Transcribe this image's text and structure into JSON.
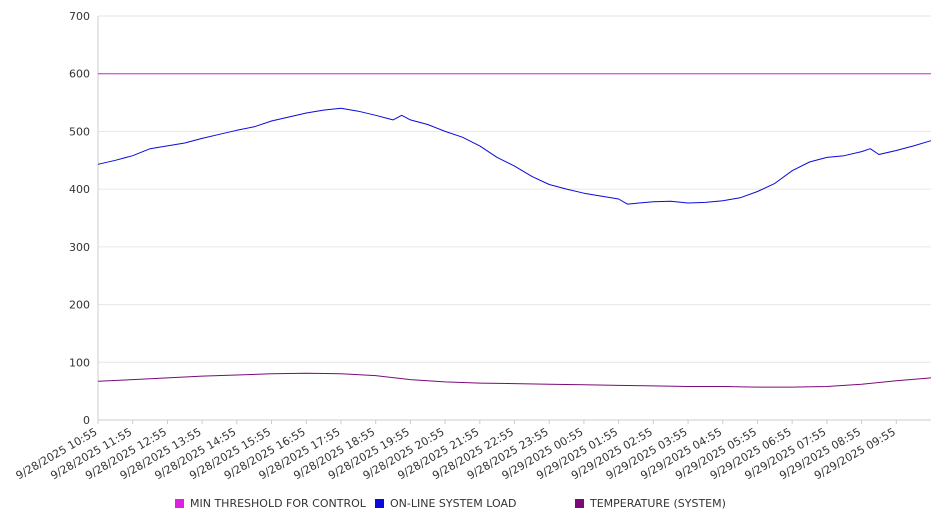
{
  "chart_data": {
    "type": "line",
    "title": "",
    "xlabel": "",
    "ylabel": "",
    "ylim": [
      0,
      700
    ],
    "y_ticks": [
      0,
      100,
      200,
      300,
      400,
      500,
      600,
      700
    ],
    "grid": "horizontal",
    "legend_position": "bottom",
    "x_start": "9/28/2025 10:55",
    "x_end": "9/29/2025 10:55",
    "x_tick_labels": [
      "9/28/2025 10:55",
      "9/28/2025 11:55",
      "9/28/2025 12:55",
      "9/28/2025 13:55",
      "9/28/2025 14:55",
      "9/28/2025 15:55",
      "9/28/2025 16:55",
      "9/28/2025 17:55",
      "9/28/2025 18:55",
      "9/28/2025 19:55",
      "9/28/2025 20:55",
      "9/28/2025 21:55",
      "9/28/2025 22:55",
      "9/28/2025 23:55",
      "9/29/2025 00:55",
      "9/29/2025 01:55",
      "9/29/2025 02:55",
      "9/29/2025 03:55",
      "9/29/2025 04:55",
      "9/29/2025 05:55",
      "9/29/2025 06:55",
      "9/29/2025 07:55",
      "9/29/2025 08:55",
      "9/29/2025 09:55"
    ],
    "series": [
      {
        "name": "MIN THRESHOLD FOR CONTROL",
        "color": "#e020e0",
        "points": [
          [
            "9/28/2025 10:55",
            600
          ],
          [
            "9/29/2025 10:55",
            600
          ]
        ]
      },
      {
        "name": "ON-LINE SYSTEM LOAD",
        "color": "#0a0adc",
        "points": [
          [
            "9/28/2025 10:55",
            443
          ],
          [
            "9/28/2025 11:25",
            450
          ],
          [
            "9/28/2025 11:55",
            458
          ],
          [
            "9/28/2025 12:25",
            470
          ],
          [
            "9/28/2025 12:55",
            475
          ],
          [
            "9/28/2025 13:25",
            480
          ],
          [
            "9/28/2025 13:55",
            488
          ],
          [
            "9/28/2025 14:25",
            495
          ],
          [
            "9/28/2025 14:55",
            502
          ],
          [
            "9/28/2025 15:25",
            508
          ],
          [
            "9/28/2025 15:55",
            518
          ],
          [
            "9/28/2025 16:25",
            525
          ],
          [
            "9/28/2025 16:55",
            532
          ],
          [
            "9/28/2025 17:25",
            537
          ],
          [
            "9/28/2025 17:55",
            540
          ],
          [
            "9/28/2025 18:25",
            535
          ],
          [
            "9/28/2025 18:55",
            528
          ],
          [
            "9/28/2025 19:25",
            520
          ],
          [
            "9/28/2025 19:40",
            528
          ],
          [
            "9/28/2025 19:55",
            520
          ],
          [
            "9/28/2025 20:25",
            512
          ],
          [
            "9/28/2025 20:55",
            500
          ],
          [
            "9/28/2025 21:25",
            490
          ],
          [
            "9/28/2025 21:55",
            475
          ],
          [
            "9/28/2025 22:25",
            455
          ],
          [
            "9/28/2025 22:55",
            440
          ],
          [
            "9/28/2025 23:25",
            422
          ],
          [
            "9/28/2025 23:55",
            408
          ],
          [
            "9/29/2025 00:25",
            400
          ],
          [
            "9/29/2025 00:55",
            393
          ],
          [
            "9/29/2025 01:25",
            388
          ],
          [
            "9/29/2025 01:55",
            383
          ],
          [
            "9/29/2025 02:10",
            374
          ],
          [
            "9/29/2025 02:55",
            378
          ],
          [
            "9/29/2025 03:25",
            379
          ],
          [
            "9/29/2025 03:55",
            376
          ],
          [
            "9/29/2025 04:25",
            377
          ],
          [
            "9/29/2025 04:55",
            380
          ],
          [
            "9/29/2025 05:25",
            385
          ],
          [
            "9/29/2025 05:55",
            396
          ],
          [
            "9/29/2025 06:25",
            410
          ],
          [
            "9/29/2025 06:55",
            432
          ],
          [
            "9/29/2025 07:25",
            447
          ],
          [
            "9/29/2025 07:55",
            455
          ],
          [
            "9/29/2025 08:25",
            458
          ],
          [
            "9/29/2025 08:55",
            465
          ],
          [
            "9/29/2025 09:10",
            470
          ],
          [
            "9/29/2025 09:25",
            460
          ],
          [
            "9/29/2025 09:55",
            467
          ],
          [
            "9/29/2025 10:25",
            475
          ],
          [
            "9/29/2025 10:55",
            484
          ]
        ]
      },
      {
        "name": "TEMPERATURE (SYSTEM)",
        "color": "#7a0a7a",
        "points": [
          [
            "9/28/2025 10:55",
            67
          ],
          [
            "9/28/2025 11:55",
            70
          ],
          [
            "9/28/2025 12:55",
            73
          ],
          [
            "9/28/2025 13:55",
            76
          ],
          [
            "9/28/2025 14:55",
            78
          ],
          [
            "9/28/2025 15:55",
            80
          ],
          [
            "9/28/2025 16:55",
            81
          ],
          [
            "9/28/2025 17:55",
            80
          ],
          [
            "9/28/2025 18:55",
            77
          ],
          [
            "9/28/2025 19:55",
            70
          ],
          [
            "9/28/2025 20:55",
            66
          ],
          [
            "9/28/2025 21:55",
            64
          ],
          [
            "9/28/2025 22:55",
            63
          ],
          [
            "9/28/2025 23:55",
            62
          ],
          [
            "9/29/2025 00:55",
            61
          ],
          [
            "9/29/2025 01:55",
            60
          ],
          [
            "9/29/2025 02:55",
            59
          ],
          [
            "9/29/2025 03:55",
            58
          ],
          [
            "9/29/2025 04:55",
            58
          ],
          [
            "9/29/2025 05:55",
            57
          ],
          [
            "9/29/2025 06:55",
            57
          ],
          [
            "9/29/2025 07:55",
            58
          ],
          [
            "9/29/2025 08:55",
            62
          ],
          [
            "9/29/2025 09:55",
            68
          ],
          [
            "9/29/2025 10:55",
            73
          ]
        ]
      }
    ]
  }
}
